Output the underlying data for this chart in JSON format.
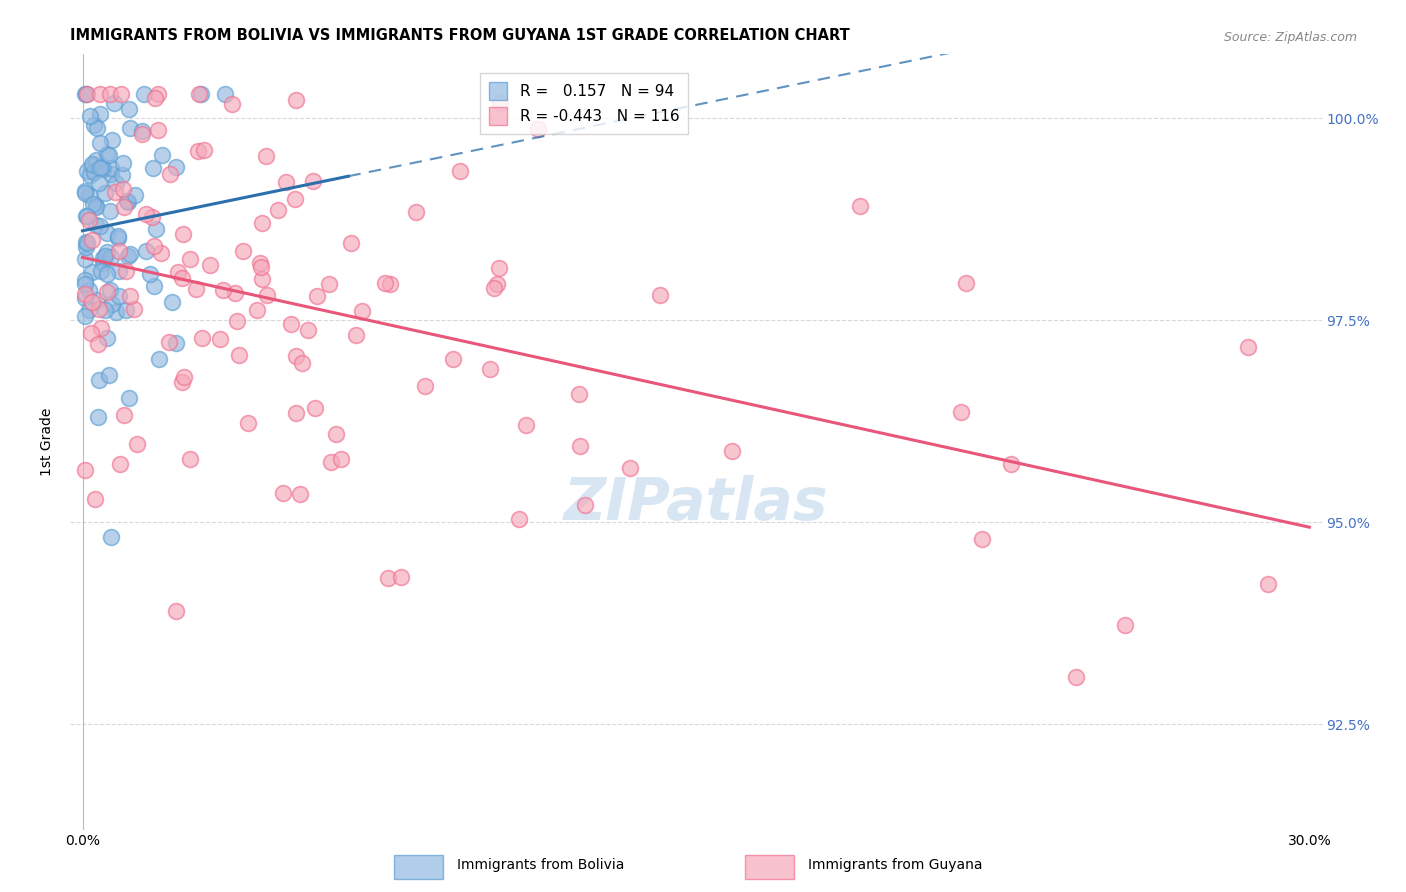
{
  "title": "IMMIGRANTS FROM BOLIVIA VS IMMIGRANTS FROM GUYANA 1ST GRADE CORRELATION CHART",
  "source": "Source: ZipAtlas.com",
  "ylabel": "1st Grade",
  "ytick_values": [
    92.5,
    95.0,
    97.5,
    100.0
  ],
  "xlim_left": 0.0,
  "xlim_right": 30.0,
  "ylim_bottom": 91.2,
  "ylim_top": 100.8,
  "bolivia_color": "#92b8e0",
  "guyana_color": "#f4a8b8",
  "bolivia_line_color": "#2c6fad",
  "guyana_line_color": "#e8567a",
  "bolivia_marker_edge": "#5a9fd4",
  "guyana_marker_edge": "#f07090",
  "watermark_color": "#c8dcf0",
  "watermark_text": "ZIPatlas",
  "right_tick_color": "#4472c4",
  "grid_color": "#d8d8d8",
  "source_color": "#888888"
}
